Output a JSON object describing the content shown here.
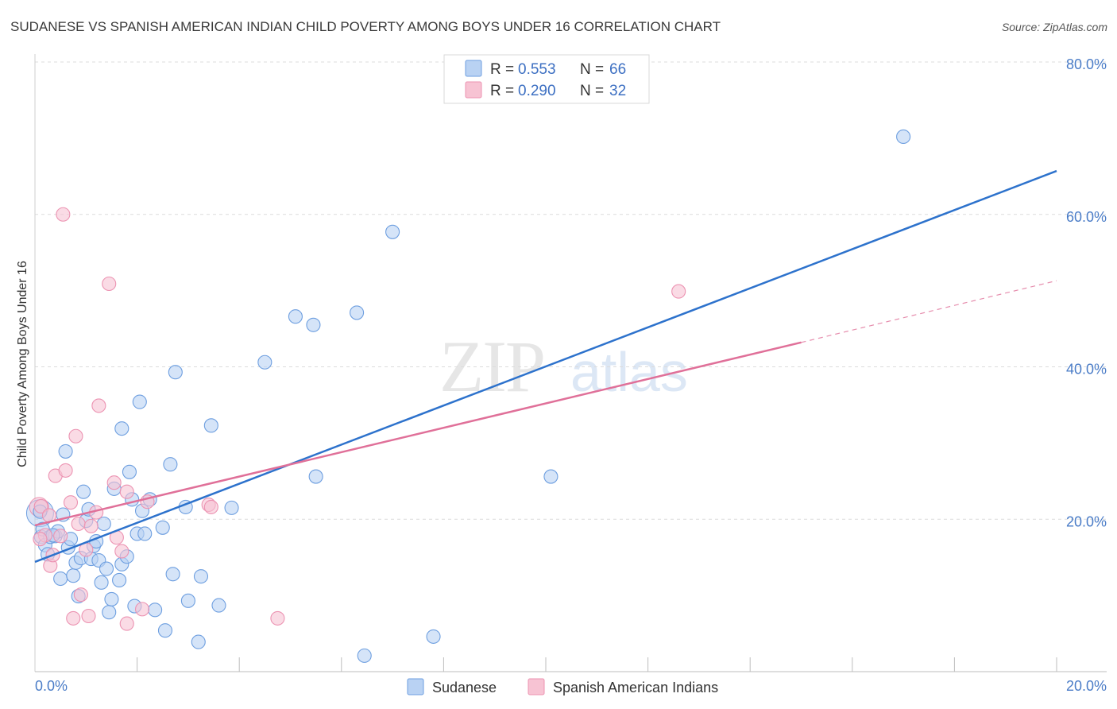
{
  "title": "SUDANESE VS SPANISH AMERICAN INDIAN CHILD POVERTY AMONG BOYS UNDER 16 CORRELATION CHART",
  "source": "Source: ZipAtlas.com",
  "watermark": {
    "zip": "ZIP",
    "atlas": "atlas"
  },
  "legend": {
    "series1": {
      "r_label": "R =",
      "r_value": "0.553",
      "n_label": "N =",
      "n_value": "66"
    },
    "series2": {
      "r_label": "R =",
      "r_value": "0.290",
      "n_label": "N =",
      "n_value": "32"
    }
  },
  "chart_data": {
    "type": "scatter",
    "title": "SUDANESE VS SPANISH AMERICAN INDIAN CHILD POVERTY AMONG BOYS UNDER 16 CORRELATION CHART",
    "xlabel": "",
    "ylabel": "Child Poverty Among Boys Under 16",
    "xlim": [
      0,
      20
    ],
    "ylim": [
      0,
      80
    ],
    "x_tick_labels": [
      "0.0%",
      "20.0%"
    ],
    "y_ticks": [
      20,
      40,
      60,
      80
    ],
    "y_tick_labels": [
      "20.0%",
      "40.0%",
      "60.0%",
      "80.0%"
    ],
    "grid": true,
    "colors": {
      "blue_fill": "#b9d2f3",
      "blue_stroke": "#6e9fe0",
      "blue_line": "#2d72cc",
      "pink_fill": "#f7c3d3",
      "pink_stroke": "#ec93b2",
      "pink_line": "#e07099"
    },
    "series": [
      {
        "name": "Sudanese",
        "color": "#6e9fe0",
        "points": [
          [
            0.1,
            21
          ],
          [
            0.12,
            17.7
          ],
          [
            0.15,
            18.7
          ],
          [
            0.2,
            16.6
          ],
          [
            0.25,
            15.4
          ],
          [
            0.3,
            17.7
          ],
          [
            0.4,
            17.8
          ],
          [
            0.45,
            18.4
          ],
          [
            0.5,
            12.2
          ],
          [
            0.55,
            20.6
          ],
          [
            0.6,
            28.9
          ],
          [
            0.65,
            16.3
          ],
          [
            0.7,
            17.4
          ],
          [
            0.75,
            12.6
          ],
          [
            0.8,
            14.3
          ],
          [
            0.85,
            9.9
          ],
          [
            0.9,
            14.9
          ],
          [
            0.95,
            23.6
          ],
          [
            1.0,
            19.8
          ],
          [
            1.05,
            21.3
          ],
          [
            1.1,
            14.8
          ],
          [
            1.15,
            16.5
          ],
          [
            1.2,
            17.1
          ],
          [
            1.25,
            14.6
          ],
          [
            1.3,
            11.7
          ],
          [
            1.35,
            19.4
          ],
          [
            1.4,
            13.5
          ],
          [
            1.45,
            7.8
          ],
          [
            1.5,
            9.5
          ],
          [
            1.55,
            24
          ],
          [
            1.65,
            12
          ],
          [
            1.7,
            14.1
          ],
          [
            1.7,
            31.9
          ],
          [
            1.8,
            15.1
          ],
          [
            1.85,
            26.2
          ],
          [
            1.9,
            22.6
          ],
          [
            1.95,
            8.6
          ],
          [
            2.0,
            18.1
          ],
          [
            2.05,
            35.4
          ],
          [
            2.1,
            21.1
          ],
          [
            2.15,
            18.1
          ],
          [
            2.25,
            22.6
          ],
          [
            2.35,
            8.1
          ],
          [
            2.5,
            18.9
          ],
          [
            2.55,
            5.4
          ],
          [
            2.65,
            27.2
          ],
          [
            2.7,
            12.8
          ],
          [
            2.75,
            39.3
          ],
          [
            2.95,
            21.6
          ],
          [
            3.0,
            9.3
          ],
          [
            3.2,
            3.9
          ],
          [
            3.25,
            12.5
          ],
          [
            3.45,
            32.3
          ],
          [
            3.6,
            8.7
          ],
          [
            3.85,
            21.5
          ],
          [
            4.5,
            40.6
          ],
          [
            5.1,
            46.6
          ],
          [
            5.45,
            45.5
          ],
          [
            5.5,
            25.6
          ],
          [
            6.3,
            47.1
          ],
          [
            6.45,
            2.1
          ],
          [
            7.0,
            57.7
          ],
          [
            7.8,
            4.6
          ],
          [
            10.1,
            25.6
          ],
          [
            17.0,
            70.2
          ],
          [
            0.35,
            17.9
          ]
        ],
        "trend": {
          "x": [
            0,
            20
          ],
          "y": [
            14.4,
            65.7
          ]
        }
      },
      {
        "name": "Spanish American Indians",
        "color": "#ec93b2",
        "points": [
          [
            0.12,
            21.7
          ],
          [
            0.2,
            17.9
          ],
          [
            0.3,
            13.9
          ],
          [
            0.35,
            15.3
          ],
          [
            0.4,
            25.7
          ],
          [
            0.5,
            17.8
          ],
          [
            0.55,
            60
          ],
          [
            0.6,
            26.4
          ],
          [
            0.7,
            22.2
          ],
          [
            0.75,
            7
          ],
          [
            0.8,
            30.9
          ],
          [
            0.85,
            19.4
          ],
          [
            0.9,
            10.1
          ],
          [
            1.0,
            16
          ],
          [
            1.05,
            7.3
          ],
          [
            1.1,
            19.1
          ],
          [
            1.2,
            20.9
          ],
          [
            1.25,
            34.9
          ],
          [
            1.45,
            50.9
          ],
          [
            1.55,
            24.8
          ],
          [
            1.6,
            17.6
          ],
          [
            1.7,
            15.8
          ],
          [
            1.8,
            6.3
          ],
          [
            1.8,
            23.6
          ],
          [
            2.1,
            8.2
          ],
          [
            2.2,
            22.3
          ],
          [
            3.4,
            21.9
          ],
          [
            3.45,
            21.6
          ],
          [
            4.75,
            7
          ],
          [
            12.6,
            49.9
          ],
          [
            0.1,
            17.4
          ],
          [
            0.28,
            20.5
          ]
        ],
        "trend": {
          "x": [
            0,
            15
          ],
          "y": [
            19.2,
            43.2
          ]
        },
        "trend_extension": {
          "x": [
            15,
            20
          ],
          "y": [
            43.2,
            51.3
          ]
        }
      }
    ]
  },
  "bottom_legend": {
    "series1": "Sudanese",
    "series2": "Spanish American Indians"
  }
}
